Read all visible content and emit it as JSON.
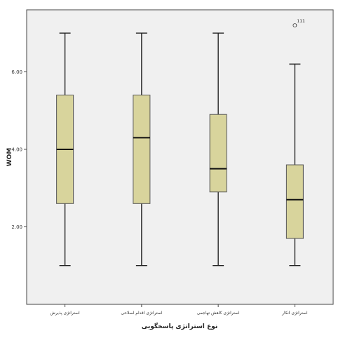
{
  "chart_data": {
    "type": "box",
    "ylabel": "WOM",
    "xlabel": "نوع استراتژی پاسخگویی",
    "yticks": [
      "2.00",
      "4.00",
      "6.00"
    ],
    "ylim": [
      0,
      7.6
    ],
    "categories": [
      "استراتژی پذیرش",
      "استراتژی اقدام اصلاحی",
      "استراتژی کاهش تهاجمی",
      "استراتژی انکار"
    ],
    "series": [
      {
        "min": 1.0,
        "q1": 2.6,
        "median": 4.0,
        "q3": 5.4,
        "max": 7.0
      },
      {
        "min": 1.0,
        "q1": 2.6,
        "median": 4.3,
        "q3": 5.4,
        "max": 7.0
      },
      {
        "min": 1.0,
        "q1": 2.9,
        "median": 3.5,
        "q3": 4.9,
        "max": 7.0
      },
      {
        "min": 1.0,
        "q1": 1.7,
        "median": 2.7,
        "q3": 3.6,
        "max": 6.2
      }
    ],
    "outliers": [
      {
        "category_index": 3,
        "value": 7.2,
        "label": "111"
      }
    ],
    "box_color": "#d8d49c",
    "box_stroke": "#555555",
    "plot_background": "#f0f0f0",
    "grid": false,
    "legend": "none"
  }
}
